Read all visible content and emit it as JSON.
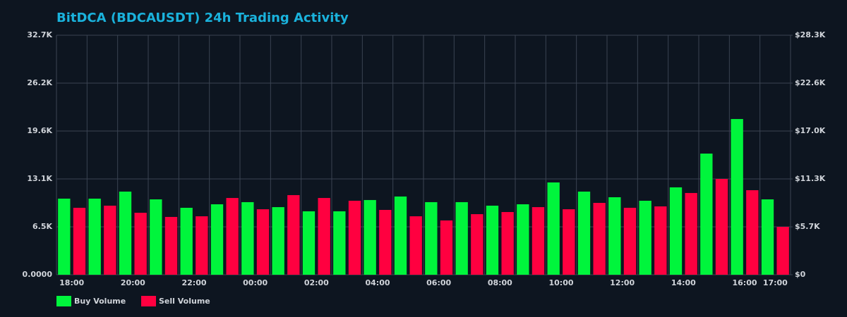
{
  "chart_data": {
    "type": "bar",
    "title": "BitDCA (BDCAUSDT) 24h Trading Activity",
    "categories": [
      "18:00",
      null,
      "20:00",
      null,
      "22:00",
      null,
      "00:00",
      null,
      "02:00",
      null,
      "04:00",
      null,
      "06:00",
      null,
      "08:00",
      null,
      "10:00",
      null,
      "12:00",
      null,
      "14:00",
      null,
      "16:00",
      "17:00"
    ],
    "series": [
      {
        "name": "Buy Volume",
        "color": "#00f53c",
        "values": [
          10390,
          10390,
          11350,
          10290,
          9140,
          9620,
          9910,
          9230,
          8660,
          8660,
          10200,
          10680,
          9910,
          9910,
          9430,
          9620,
          12600,
          11350,
          10580,
          10100,
          11930,
          16540,
          21260,
          10290
        ]
      },
      {
        "name": "Sell Volume",
        "color": "#ff0040",
        "values": [
          9140,
          9430,
          8460,
          7890,
          7980,
          10480,
          8940,
          10870,
          10480,
          10100,
          8850,
          7980,
          7410,
          8270,
          8560,
          9230,
          8940,
          9810,
          9140,
          9330,
          11160,
          13080,
          11540,
          6540
        ]
      }
    ],
    "ylim": [
      0,
      32700
    ],
    "yticks": [
      {
        "value": 0,
        "label": "0.0000"
      },
      {
        "value": 6540,
        "label": "6.5K"
      },
      {
        "value": 13080,
        "label": "13.1K"
      },
      {
        "value": 19620,
        "label": "19.6K"
      },
      {
        "value": 26160,
        "label": "26.2K"
      },
      {
        "value": 32700,
        "label": "32.7K"
      }
    ],
    "y2lim": [
      0,
      28300
    ],
    "y2ticks": [
      {
        "value": 0,
        "label": "$0"
      },
      {
        "value": 5660,
        "label": "$5.7K"
      },
      {
        "value": 11320,
        "label": "$11.3K"
      },
      {
        "value": 16980,
        "label": "$17.0K"
      },
      {
        "value": 22640,
        "label": "$22.6K"
      },
      {
        "value": 28300,
        "label": "$28.3K"
      }
    ],
    "grid": true,
    "legend": "bottom-left"
  }
}
